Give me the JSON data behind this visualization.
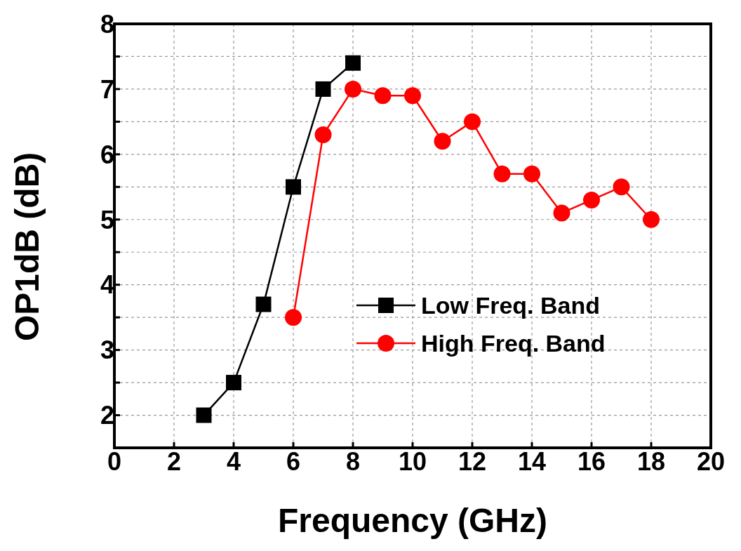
{
  "chart_data": {
    "type": "line",
    "xlabel": "Frequency (GHz)",
    "ylabel": "OP1dB (dB)",
    "xlim": [
      0,
      20
    ],
    "xticks": [
      0,
      2,
      4,
      6,
      8,
      10,
      12,
      14,
      16,
      18,
      20
    ],
    "ylim": [
      1.5,
      8
    ],
    "yticks": [
      2,
      {
        "value": 2.5,
        "label": null
      },
      3,
      {
        "value": 3.5,
        "label": null
      },
      4,
      {
        "value": 4.5,
        "label": null
      },
      5,
      {
        "value": 5.5,
        "label": null
      },
      6,
      {
        "value": 6.5,
        "label": null
      },
      7,
      {
        "value": 7.5,
        "label": null
      },
      8
    ],
    "grid": true,
    "legend": "right",
    "line_style": "solid",
    "series": [
      {
        "name": "Low Freq. Band",
        "color": "#000000",
        "marker": "square",
        "x": [
          3,
          4,
          5,
          6,
          7,
          8
        ],
        "values": [
          2.0,
          2.5,
          3.7,
          5.5,
          7.0,
          7.4
        ]
      },
      {
        "name": "High Freq. Band",
        "color": "#ff0000",
        "marker": "circle",
        "x": [
          6,
          7,
          8,
          9,
          10,
          11,
          12,
          13,
          14,
          15,
          16,
          17,
          18
        ],
        "values": [
          3.5,
          6.3,
          7.0,
          6.9,
          6.9,
          6.2,
          6.5,
          5.7,
          5.7,
          5.1,
          5.3,
          5.5,
          5.0
        ]
      }
    ]
  }
}
